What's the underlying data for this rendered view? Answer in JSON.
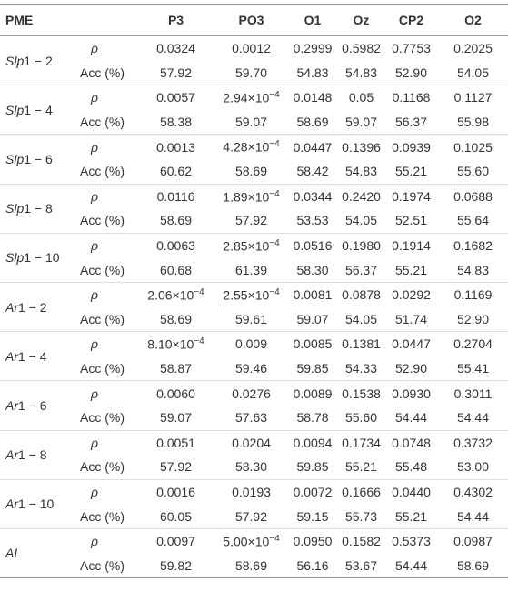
{
  "table": {
    "header": [
      "PME",
      "P3",
      "PO3",
      "O1",
      "Oz",
      "CP2",
      "O2"
    ],
    "metric_labels": [
      "ρ",
      "Acc (%)"
    ],
    "groups": [
      {
        "label": {
          "name": "Slp",
          "range": "1 − 2"
        },
        "rho": [
          "0.0324",
          "0.0012",
          "0.2999",
          "0.5982",
          "0.7753",
          "0.2025"
        ],
        "acc": [
          "57.92",
          "59.70",
          "54.83",
          "54.83",
          "52.90",
          "54.05"
        ]
      },
      {
        "label": {
          "name": "Slp",
          "range": "1 − 4"
        },
        "rho": [
          "0.0057",
          {
            "base": "2.94×10",
            "exponent": "−4"
          },
          "0.0148",
          "0.05",
          "0.1168",
          "0.1127"
        ],
        "acc": [
          "58.38",
          "59.07",
          "58.69",
          "59.07",
          "56.37",
          "55.98"
        ]
      },
      {
        "label": {
          "name": "Slp",
          "range": "1 − 6"
        },
        "rho": [
          "0.0013",
          {
            "base": "4.28×10",
            "exponent": "−4"
          },
          "0.0447",
          "0.1396",
          "0.0939",
          "0.1025"
        ],
        "acc": [
          "60.62",
          "58.69",
          "58.42",
          "54.83",
          "55.21",
          "55.60"
        ]
      },
      {
        "label": {
          "name": "Slp",
          "range": "1 − 8"
        },
        "rho": [
          "0.0116",
          {
            "base": "1.89×10",
            "exponent": "−4"
          },
          "0.0344",
          "0.2420",
          "0.1974",
          "0.0688"
        ],
        "acc": [
          "58.69",
          "57.92",
          "53.53",
          "54.05",
          "52.51",
          "55.64"
        ]
      },
      {
        "label": {
          "name": "Slp",
          "range": "1 − 10"
        },
        "rho": [
          "0.0063",
          {
            "base": "2.85×10",
            "exponent": "−4"
          },
          "0.0516",
          "0.1980",
          "0.1914",
          "0.1682"
        ],
        "acc": [
          "60.68",
          "61.39",
          "58.30",
          "56.37",
          "55.21",
          "54.83"
        ]
      },
      {
        "label": {
          "name": "Ar",
          "range": "1 − 2"
        },
        "rho": [
          {
            "base": "2.06×10",
            "exponent": "−4"
          },
          {
            "base": "2.55×10",
            "exponent": "−4"
          },
          "0.0081",
          "0.0878",
          "0.0292",
          "0.1169"
        ],
        "acc": [
          "58.69",
          "59.61",
          "59.07",
          "54.05",
          "51.74",
          "52.90"
        ]
      },
      {
        "label": {
          "name": "Ar",
          "range": "1 − 4"
        },
        "rho": [
          {
            "base": "8.10×10",
            "exponent": "−4"
          },
          "0.009",
          "0.0085",
          "0.1381",
          "0.0447",
          "0.2704"
        ],
        "acc": [
          "58.87",
          "59.46",
          "59.85",
          "54.33",
          "52.90",
          "55.41"
        ]
      },
      {
        "label": {
          "name": "Ar",
          "range": "1 − 6"
        },
        "rho": [
          "0.0060",
          "0.0276",
          "0.0089",
          "0.1538",
          "0.0930",
          "0.3011"
        ],
        "acc": [
          "59.07",
          "57.63",
          "58.78",
          "55.60",
          "54.44",
          "54.44"
        ]
      },
      {
        "label": {
          "name": "Ar",
          "range": "1 − 8"
        },
        "rho": [
          "0.0051",
          "0.0204",
          "0.0094",
          "0.1734",
          "0.0748",
          "0.3732"
        ],
        "acc": [
          "57.92",
          "58.30",
          "59.85",
          "55.21",
          "55.48",
          "53.00"
        ]
      },
      {
        "label": {
          "name": "Ar",
          "range": "1 − 10"
        },
        "rho": [
          "0.0016",
          "0.0193",
          "0.0072",
          "0.1666",
          "0.0440",
          "0.4302"
        ],
        "acc": [
          "60.05",
          "57.92",
          "59.15",
          "55.73",
          "55.21",
          "54.44"
        ]
      },
      {
        "label": {
          "name": "AL"
        },
        "rho": [
          "0.0097",
          {
            "base": "5.00×10",
            "exponent": "−4"
          },
          "0.0950",
          "0.1582",
          "0.5373",
          "0.0987"
        ],
        "acc": [
          "59.82",
          "58.69",
          "56.16",
          "53.67",
          "54.44",
          "58.69"
        ]
      }
    ]
  }
}
